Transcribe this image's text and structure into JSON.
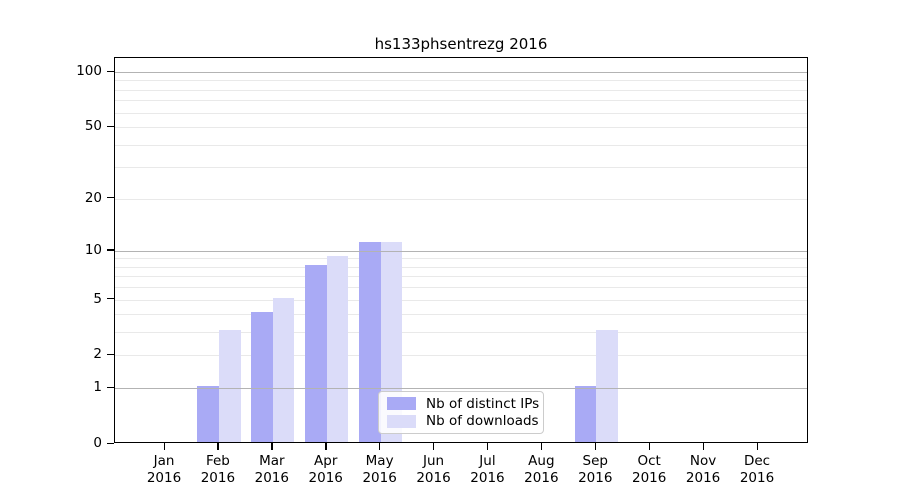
{
  "figure": {
    "title": "hs133phsentrezg 2016",
    "background": "#ffffff"
  },
  "chart_data": {
    "type": "bar",
    "title": "hs133phsentrezg 2016",
    "categories": [
      "Jan",
      "Feb",
      "Mar",
      "Apr",
      "May",
      "Jun",
      "Jul",
      "Aug",
      "Sep",
      "Oct",
      "Nov",
      "Dec"
    ],
    "year_label": "2016",
    "series": [
      {
        "name": "Nb of distinct IPs",
        "color": "#a9aaf5",
        "values": [
          0,
          1,
          4,
          8,
          11,
          0,
          0,
          0,
          1,
          0,
          0,
          0
        ]
      },
      {
        "name": "Nb of downloads",
        "color": "#dbdcf9",
        "values": [
          0,
          3,
          5,
          9,
          11,
          0,
          0,
          0,
          3,
          0,
          0,
          0
        ]
      }
    ],
    "y_axis": {
      "scale": "log1p",
      "tick_labels": [
        "0",
        "1",
        "2",
        "5",
        "10",
        "20",
        "50",
        "100"
      ],
      "tick_values": [
        0,
        1,
        2,
        5,
        10,
        20,
        50,
        100
      ],
      "minor_gridlines": [
        2,
        3,
        4,
        5,
        6,
        7,
        8,
        9,
        20,
        30,
        40,
        50,
        60,
        70,
        80,
        90
      ],
      "major_gridlines": [
        1,
        10,
        100
      ],
      "max": 100
    },
    "legend": {
      "position": "inside-bottom-center",
      "entries": [
        "Nb of distinct IPs",
        "Nb of downloads"
      ]
    },
    "grid": "horizontal",
    "colors": {
      "axis": "#000000",
      "minor_grid": "#e9e9e9",
      "major_grid": "#b3b3b3",
      "legend_border": "#cccccc",
      "distinct_ips_bar": "#a9aaf5",
      "downloads_bar": "#dbdcf9"
    }
  }
}
